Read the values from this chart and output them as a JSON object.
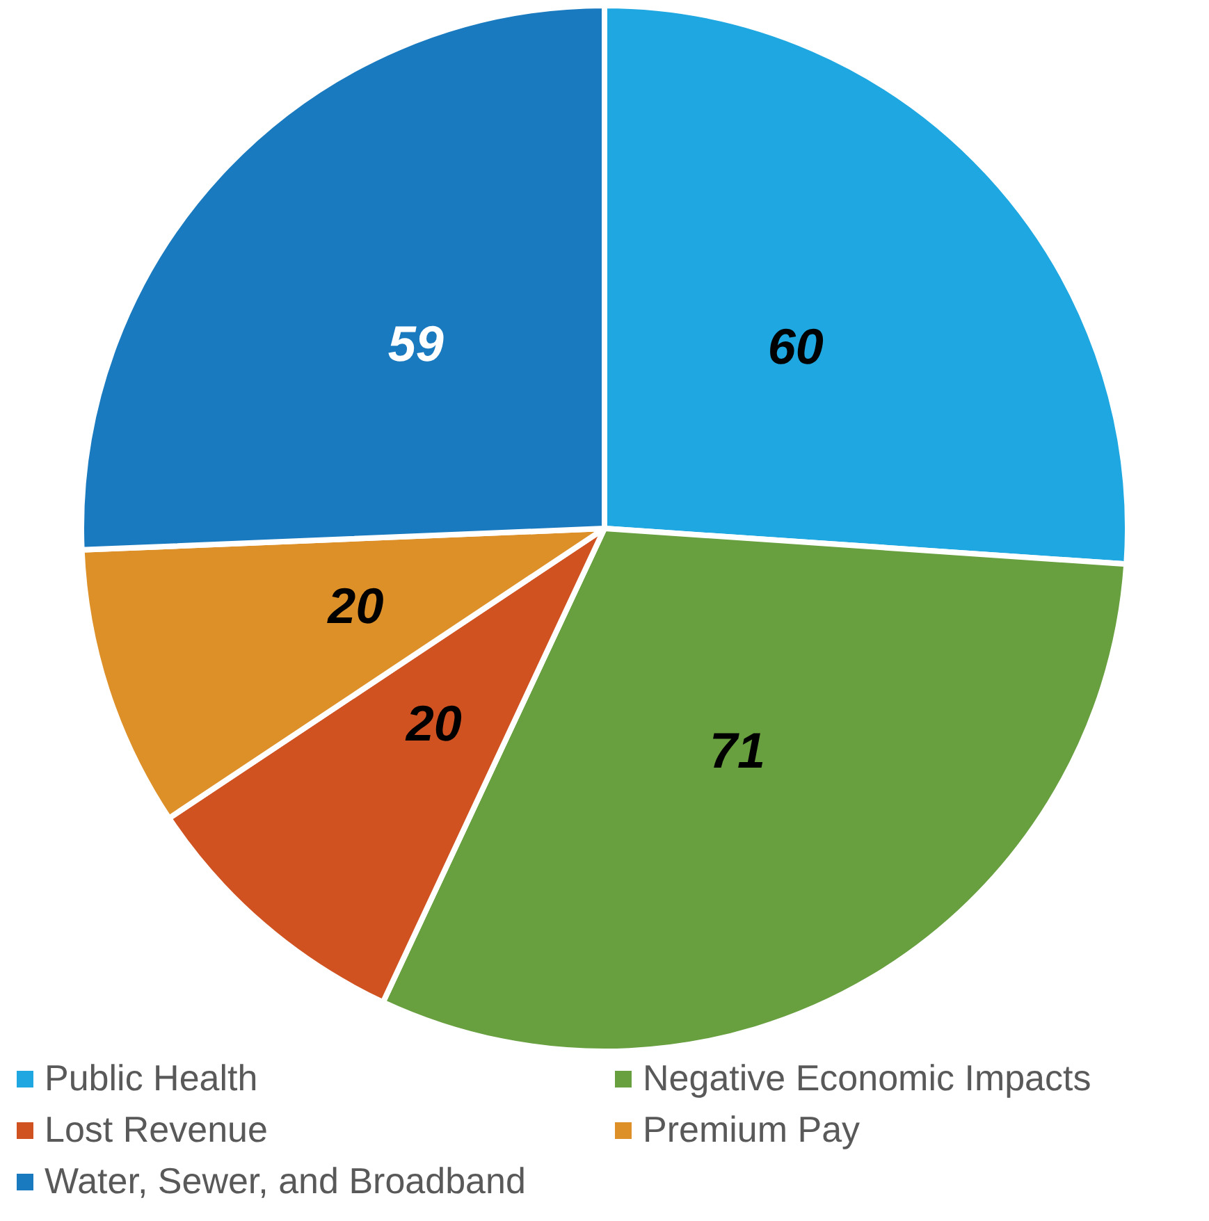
{
  "chart_data": {
    "type": "pie",
    "categories": [
      "Public Health",
      "Negative Economic Impacts",
      "Lost Revenue",
      "Premium Pay",
      "Water, Sewer, and Broadband"
    ],
    "values": [
      60,
      71,
      20,
      20,
      59
    ],
    "colors": [
      "#1ea7e0",
      "#689f3f",
      "#d05220",
      "#de9028",
      "#1a7abf"
    ],
    "data_labels": true,
    "legend": "bottom"
  }
}
